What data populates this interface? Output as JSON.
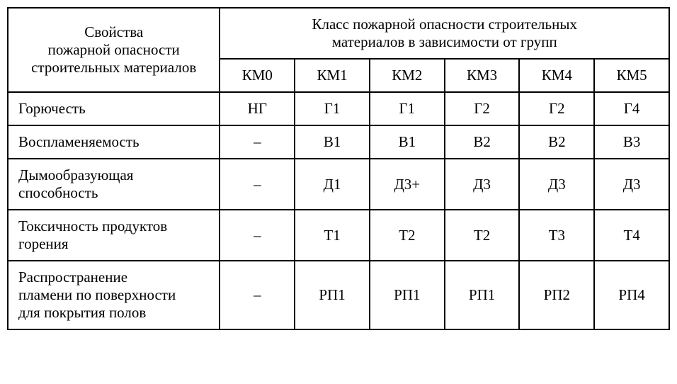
{
  "table": {
    "header_left": "Свойства\nпожарной опасности\nстроительных материалов",
    "header_top": "Класс пожарной опасности строительных\nматериалов в зависимости от групп",
    "columns": [
      "КМ0",
      "КМ1",
      "КМ2",
      "КМ3",
      "КМ4",
      "КМ5"
    ],
    "rows": [
      {
        "label": "Горючесть",
        "values": [
          "НГ",
          "Г1",
          "Г1",
          "Г2",
          "Г2",
          "Г4"
        ]
      },
      {
        "label": "Воспламеняемость",
        "values": [
          "–",
          "В1",
          "В1",
          "В2",
          "В2",
          "В3"
        ]
      },
      {
        "label": "Дымообразующая\nспособность",
        "values": [
          "–",
          "Д1",
          "Д3+",
          "Д3",
          "Д3",
          "Д3"
        ]
      },
      {
        "label": "Токсичность продуктов\nгорения",
        "values": [
          "–",
          "Т1",
          "Т2",
          "Т2",
          "Т3",
          "Т4"
        ]
      },
      {
        "label": "Распространение\nпламени по поверхности\nдля покрытия полов",
        "values": [
          "–",
          "РП1",
          "РП1",
          "РП1",
          "РП2",
          "РП4"
        ]
      }
    ],
    "styling": {
      "border_color": "#000000",
      "border_width": 2,
      "background_color": "#ffffff",
      "text_color": "#000000",
      "font_family": "Times New Roman",
      "font_size": 21,
      "row_label_width": 340,
      "data_col_width": 99,
      "cell_padding": "10px 14px"
    }
  }
}
